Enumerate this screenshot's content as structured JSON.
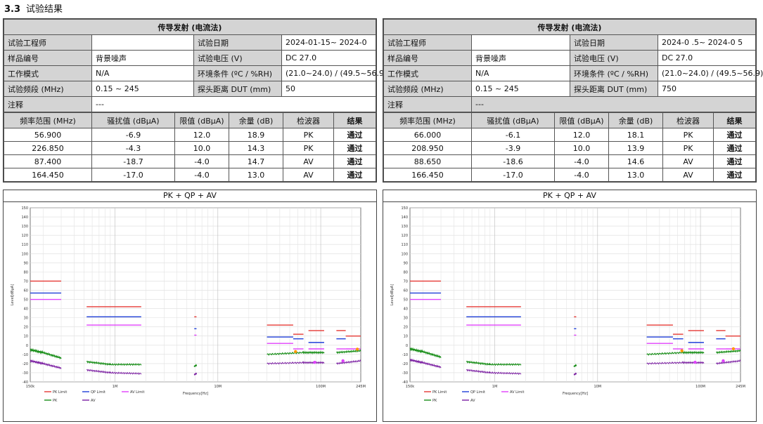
{
  "section": {
    "number": "3.3",
    "title": "试验结果"
  },
  "reports": [
    {
      "title": "传导发射 (电流法)",
      "engineer_label": "试验工程师",
      "engineer_value": "",
      "date_label": "试验日期",
      "date_value": "2024-01-15~ 2024-0",
      "sample_label": "样品编号",
      "sample_value": "背景噪声",
      "voltage_label": "试验电压 (V)",
      "voltage_value": "DC 27.0",
      "mode_label": "工作模式",
      "mode_value": "N/A",
      "env_label": "环境条件 (ºC / %RH)",
      "env_value": "(21.0~24.0) / (49.5~56.9)",
      "band_label": "试验频段 (MHz)",
      "band_value": "0.15 ~ 245",
      "probe_label": "探头距离 DUT (mm)",
      "probe_value": "50",
      "note_label": "注释",
      "note_value": "---",
      "columns": [
        "频率范围 (MHz)",
        "骚扰值 (dBµA)",
        "限值 (dBµA)",
        "余量 (dB)",
        "检波器",
        "结果"
      ],
      "rows": [
        [
          "56.900",
          "-6.9",
          "12.0",
          "18.9",
          "PK",
          "通过"
        ],
        [
          "226.850",
          "-4.3",
          "10.0",
          "14.3",
          "PK",
          "通过"
        ],
        [
          "87.400",
          "-18.7",
          "-4.0",
          "14.7",
          "AV",
          "通过"
        ],
        [
          "164.450",
          "-17.0",
          "-4.0",
          "13.0",
          "AV",
          "通过"
        ]
      ]
    },
    {
      "title": "传导发射 (电流法)",
      "engineer_label": "试验工程师",
      "engineer_value": "",
      "date_label": "试验日期",
      "date_value": "2024-0 .5~ 2024-0 5",
      "sample_label": "样品编号",
      "sample_value": "背景噪声",
      "voltage_label": "试验电压 (V)",
      "voltage_value": "DC 27.0",
      "mode_label": "工作模式",
      "mode_value": "N/A",
      "env_label": "环境条件 (ºC / %RH)",
      "env_value": "(21.0~24.0) / (49.5~56.9)",
      "band_label": "试验频段 (MHz)",
      "band_value": "0.15 ~ 245",
      "probe_label": "探头距离 DUT (mm)",
      "probe_value": "750",
      "note_label": "注释",
      "note_value": "---",
      "columns": [
        "频率范围 (MHz)",
        "骚扰值 (dBµA)",
        "限值 (dBµA)",
        "余量 (dB)",
        "检波器",
        "结果"
      ],
      "rows": [
        [
          "66.000",
          "-6.1",
          "12.0",
          "18.1",
          "PK",
          "通过"
        ],
        [
          "208.950",
          "-3.9",
          "10.0",
          "13.9",
          "PK",
          "通过"
        ],
        [
          "88.650",
          "-18.6",
          "-4.0",
          "14.6",
          "AV",
          "通过"
        ],
        [
          "166.450",
          "-17.0",
          "-4.0",
          "13.0",
          "AV",
          "通过"
        ]
      ]
    }
  ],
  "chart_data": [
    {
      "type": "line",
      "title": "PK + QP + AV",
      "xlabel": "Frequency[Hz]",
      "ylabel": "Level[dBµA]",
      "xscale": "log",
      "xlim": [
        150000,
        245000000
      ],
      "ylim": [
        -40,
        150
      ],
      "xticks": [
        "150k",
        "1M",
        "10M",
        "100M",
        "245M"
      ],
      "yticks": [
        -40,
        -30,
        -20,
        -10,
        0,
        10,
        20,
        30,
        40,
        50,
        60,
        70,
        80,
        90,
        100,
        110,
        120,
        130,
        140,
        150
      ],
      "legend": [
        "PK Limit",
        "QP Limit",
        "AV Limit",
        "PK",
        "AV"
      ],
      "legend_colors": {
        "PK Limit": "#e53935",
        "QP Limit": "#1e3fd8",
        "AV Limit": "#e040fb",
        "PK": "#1a8f1a",
        "AV": "#7b1fa2"
      },
      "limit_segments": [
        {
          "series": "PK Limit",
          "x": [
            150000,
            300000
          ],
          "y": 70
        },
        {
          "series": "QP Limit",
          "x": [
            150000,
            300000
          ],
          "y": 57
        },
        {
          "series": "AV Limit",
          "x": [
            150000,
            300000
          ],
          "y": 50
        },
        {
          "series": "PK Limit",
          "x": [
            530000,
            1800000
          ],
          "y": 42
        },
        {
          "series": "QP Limit",
          "x": [
            530000,
            1800000
          ],
          "y": 31
        },
        {
          "series": "AV Limit",
          "x": [
            530000,
            1800000
          ],
          "y": 22
        },
        {
          "series": "PK Limit",
          "x": [
            5900000,
            6200000
          ],
          "y": 31
        },
        {
          "series": "QP Limit",
          "x": [
            5900000,
            6200000
          ],
          "y": 18
        },
        {
          "series": "AV Limit",
          "x": [
            5900000,
            6200000
          ],
          "y": 11
        },
        {
          "series": "PK Limit",
          "x": [
            30000000,
            54000000
          ],
          "y": 22
        },
        {
          "series": "QP Limit",
          "x": [
            30000000,
            54000000
          ],
          "y": 9
        },
        {
          "series": "AV Limit",
          "x": [
            30000000,
            54000000
          ],
          "y": 2
        },
        {
          "series": "PK Limit",
          "x": [
            54000000,
            68000000
          ],
          "y": 12
        },
        {
          "series": "QP Limit",
          "x": [
            54000000,
            68000000
          ],
          "y": 7
        },
        {
          "series": "AV Limit",
          "x": [
            54000000,
            68000000
          ],
          "y": -4
        },
        {
          "series": "PK Limit",
          "x": [
            76000000,
            108000000
          ],
          "y": 16
        },
        {
          "series": "QP Limit",
          "x": [
            76000000,
            108000000
          ],
          "y": 3
        },
        {
          "series": "AV Limit",
          "x": [
            76000000,
            108000000
          ],
          "y": -4
        },
        {
          "series": "PK Limit",
          "x": [
            142000000,
            175000000
          ],
          "y": 16
        },
        {
          "series": "QP Limit",
          "x": [
            142000000,
            175000000
          ],
          "y": 7
        },
        {
          "series": "AV Limit",
          "x": [
            142000000,
            175000000
          ],
          "y": -4
        },
        {
          "series": "PK Limit",
          "x": [
            175000000,
            245000000
          ],
          "y": 10
        },
        {
          "series": "AV Limit",
          "x": [
            175000000,
            245000000
          ],
          "y": -4
        }
      ],
      "series": [
        {
          "name": "PK",
          "points": [
            [
              150000,
              -5
            ],
            [
              200000,
              -8
            ],
            [
              300000,
              -14
            ]
          ]
        },
        {
          "name": "AV",
          "points": [
            [
              150000,
              -17
            ],
            [
              200000,
              -20
            ],
            [
              300000,
              -25
            ]
          ]
        },
        {
          "name": "PK",
          "points": [
            [
              530000,
              -18
            ],
            [
              900000,
              -21
            ],
            [
              1800000,
              -21
            ]
          ]
        },
        {
          "name": "AV",
          "points": [
            [
              530000,
              -27
            ],
            [
              900000,
              -30
            ],
            [
              1800000,
              -31
            ]
          ]
        },
        {
          "name": "PK",
          "points": [
            [
              5900000,
              -23
            ],
            [
              6200000,
              -22
            ]
          ]
        },
        {
          "name": "AV",
          "points": [
            [
              5900000,
              -32
            ],
            [
              6200000,
              -31
            ]
          ]
        },
        {
          "name": "PK",
          "points": [
            [
              30000000,
              -10
            ],
            [
              68000000,
              -8
            ],
            [
              108000000,
              -8
            ]
          ]
        },
        {
          "name": "AV",
          "points": [
            [
              30000000,
              -20
            ],
            [
              68000000,
              -19
            ],
            [
              108000000,
              -19
            ]
          ]
        },
        {
          "name": "PK",
          "points": [
            [
              142000000,
              -8
            ],
            [
              245000000,
              -6
            ]
          ]
        },
        {
          "name": "AV",
          "points": [
            [
              142000000,
              -20
            ],
            [
              245000000,
              -17
            ]
          ]
        }
      ],
      "markers": [
        {
          "series": "PK",
          "x": 56900000,
          "y": -6.9
        },
        {
          "series": "PK",
          "x": 226850000,
          "y": -4.3
        },
        {
          "series": "AV",
          "x": 87400000,
          "y": -18.7
        },
        {
          "series": "AV",
          "x": 164450000,
          "y": -17.0
        }
      ]
    },
    {
      "type": "line",
      "title": "PK + QP + AV",
      "xlabel": "Frequency[Hz]",
      "ylabel": "Level[dBµA]",
      "xscale": "log",
      "xlim": [
        150000,
        245000000
      ],
      "ylim": [
        -40,
        150
      ],
      "xticks": [
        "150k",
        "1M",
        "10M",
        "100M",
        "245M"
      ],
      "yticks": [
        -40,
        -30,
        -20,
        -10,
        0,
        10,
        20,
        30,
        40,
        50,
        60,
        70,
        80,
        90,
        100,
        110,
        120,
        130,
        140,
        150
      ],
      "legend": [
        "PK Limit",
        "QP Limit",
        "AV Limit",
        "PK",
        "AV"
      ],
      "legend_colors": {
        "PK Limit": "#e53935",
        "QP Limit": "#1e3fd8",
        "AV Limit": "#e040fb",
        "PK": "#1a8f1a",
        "AV": "#7b1fa2"
      },
      "limit_segments": [
        {
          "series": "PK Limit",
          "x": [
            150000,
            300000
          ],
          "y": 70
        },
        {
          "series": "QP Limit",
          "x": [
            150000,
            300000
          ],
          "y": 57
        },
        {
          "series": "AV Limit",
          "x": [
            150000,
            300000
          ],
          "y": 50
        },
        {
          "series": "PK Limit",
          "x": [
            530000,
            1800000
          ],
          "y": 42
        },
        {
          "series": "QP Limit",
          "x": [
            530000,
            1800000
          ],
          "y": 31
        },
        {
          "series": "AV Limit",
          "x": [
            530000,
            1800000
          ],
          "y": 22
        },
        {
          "series": "PK Limit",
          "x": [
            5900000,
            6200000
          ],
          "y": 31
        },
        {
          "series": "QP Limit",
          "x": [
            5900000,
            6200000
          ],
          "y": 18
        },
        {
          "series": "AV Limit",
          "x": [
            5900000,
            6200000
          ],
          "y": 11
        },
        {
          "series": "PK Limit",
          "x": [
            30000000,
            54000000
          ],
          "y": 22
        },
        {
          "series": "QP Limit",
          "x": [
            30000000,
            54000000
          ],
          "y": 9
        },
        {
          "series": "AV Limit",
          "x": [
            30000000,
            54000000
          ],
          "y": 2
        },
        {
          "series": "PK Limit",
          "x": [
            54000000,
            68000000
          ],
          "y": 12
        },
        {
          "series": "QP Limit",
          "x": [
            54000000,
            68000000
          ],
          "y": 7
        },
        {
          "series": "AV Limit",
          "x": [
            54000000,
            68000000
          ],
          "y": -4
        },
        {
          "series": "PK Limit",
          "x": [
            76000000,
            108000000
          ],
          "y": 16
        },
        {
          "series": "QP Limit",
          "x": [
            76000000,
            108000000
          ],
          "y": 3
        },
        {
          "series": "AV Limit",
          "x": [
            76000000,
            108000000
          ],
          "y": -4
        },
        {
          "series": "PK Limit",
          "x": [
            142000000,
            175000000
          ],
          "y": 16
        },
        {
          "series": "QP Limit",
          "x": [
            142000000,
            175000000
          ],
          "y": 7
        },
        {
          "series": "AV Limit",
          "x": [
            142000000,
            175000000
          ],
          "y": -4
        },
        {
          "series": "PK Limit",
          "x": [
            175000000,
            245000000
          ],
          "y": 10
        },
        {
          "series": "AV Limit",
          "x": [
            175000000,
            245000000
          ],
          "y": -4
        }
      ],
      "series": [
        {
          "name": "PK",
          "points": [
            [
              150000,
              -4
            ],
            [
              200000,
              -7
            ],
            [
              300000,
              -13
            ]
          ]
        },
        {
          "name": "AV",
          "points": [
            [
              150000,
              -16
            ],
            [
              200000,
              -19
            ],
            [
              300000,
              -24
            ]
          ]
        },
        {
          "name": "PK",
          "points": [
            [
              530000,
              -18
            ],
            [
              900000,
              -21
            ],
            [
              1800000,
              -21
            ]
          ]
        },
        {
          "name": "AV",
          "points": [
            [
              530000,
              -27
            ],
            [
              900000,
              -30
            ],
            [
              1800000,
              -31
            ]
          ]
        },
        {
          "name": "PK",
          "points": [
            [
              5900000,
              -23
            ],
            [
              6200000,
              -22
            ]
          ]
        },
        {
          "name": "AV",
          "points": [
            [
              5900000,
              -32
            ],
            [
              6200000,
              -31
            ]
          ]
        },
        {
          "name": "PK",
          "points": [
            [
              30000000,
              -10
            ],
            [
              68000000,
              -8
            ],
            [
              108000000,
              -8
            ]
          ]
        },
        {
          "name": "AV",
          "points": [
            [
              30000000,
              -20
            ],
            [
              68000000,
              -19
            ],
            [
              108000000,
              -19
            ]
          ]
        },
        {
          "name": "PK",
          "points": [
            [
              142000000,
              -8
            ],
            [
              245000000,
              -6
            ]
          ]
        },
        {
          "name": "AV",
          "points": [
            [
              142000000,
              -20
            ],
            [
              245000000,
              -17
            ]
          ]
        }
      ],
      "markers": [
        {
          "series": "PK",
          "x": 66000000,
          "y": -6.1
        },
        {
          "series": "PK",
          "x": 208950000,
          "y": -3.9
        },
        {
          "series": "AV",
          "x": 88650000,
          "y": -18.6
        },
        {
          "series": "AV",
          "x": 166450000,
          "y": -17.0
        }
      ]
    }
  ]
}
